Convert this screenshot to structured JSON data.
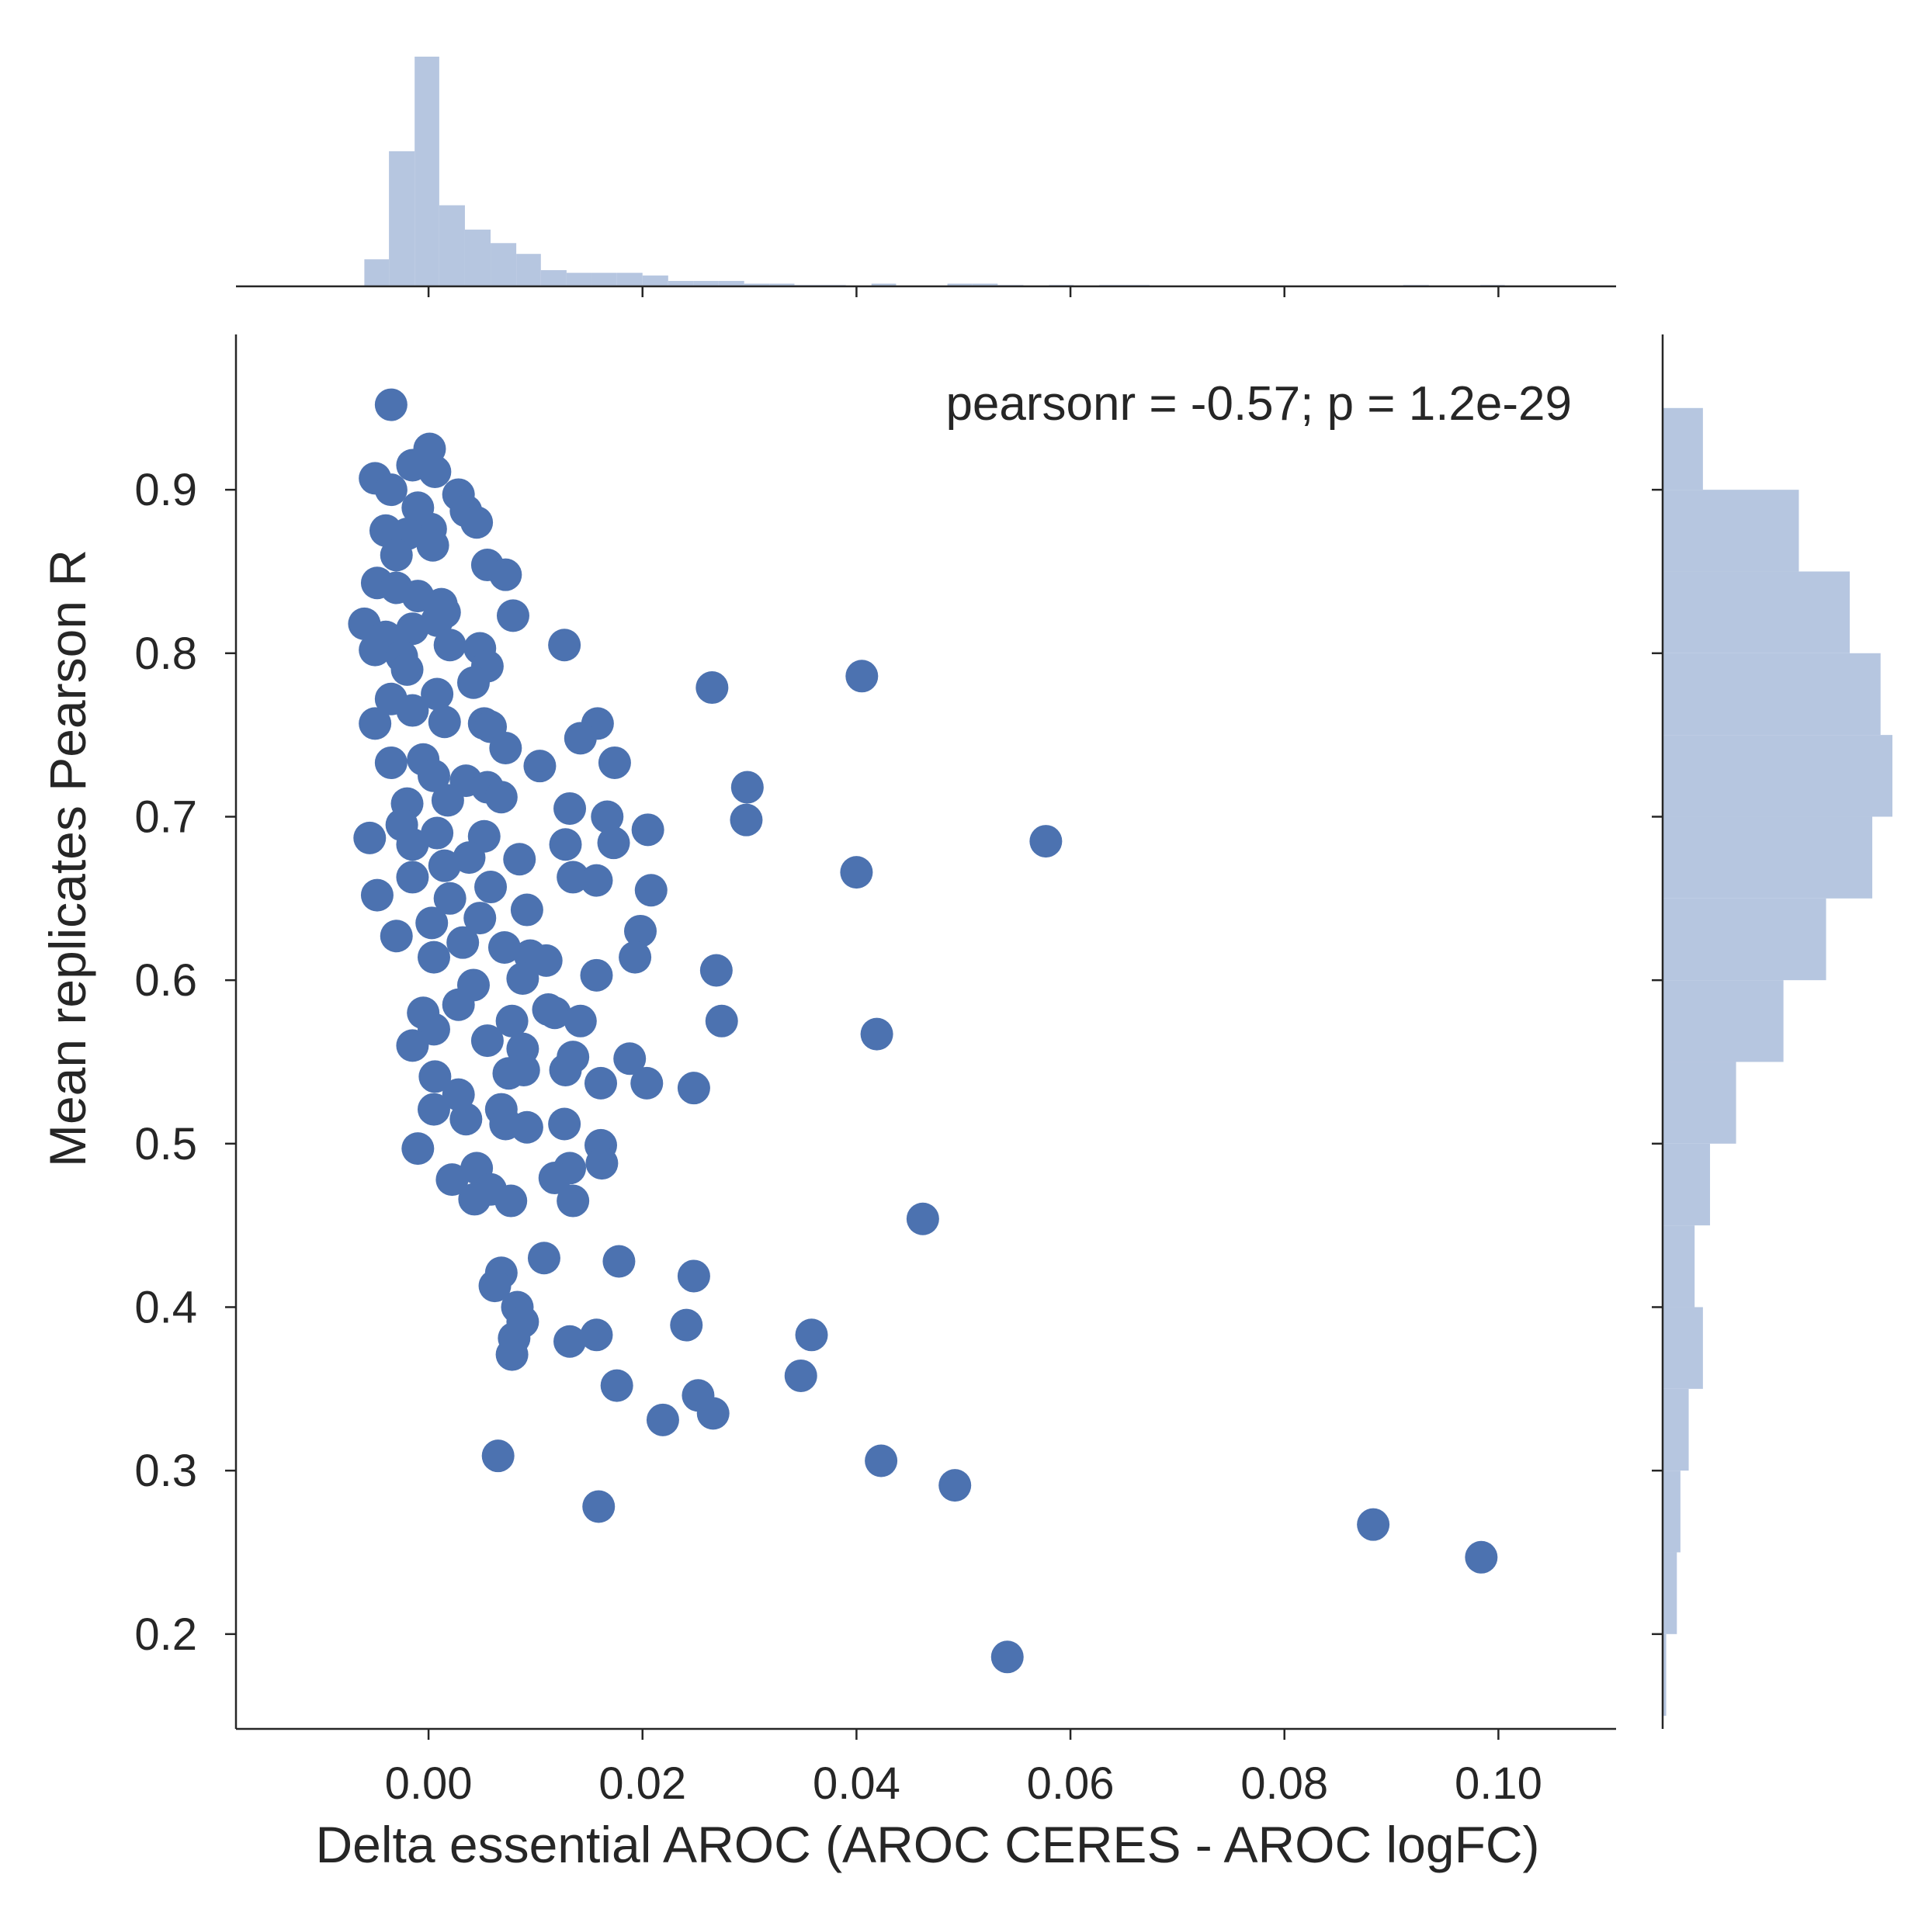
{
  "chart_data": {
    "type": "scatter",
    "title": "",
    "xlabel": "Delta essential AROC (AROC CERES - AROC logFC)",
    "ylabel": "Mean replicates Pearson R",
    "annotation": "pearsonr = -0.57; p = 1.2e-29",
    "annotation_position": "top-right",
    "xlim": [
      -0.018,
      0.111
    ],
    "ylim": [
      0.142,
      0.995
    ],
    "x_ticks": [
      0.0,
      0.02,
      0.04,
      0.06,
      0.08,
      0.1
    ],
    "x_tick_labels": [
      "0.00",
      "0.02",
      "0.04",
      "0.06",
      "0.08",
      "0.10"
    ],
    "y_ticks": [
      0.2,
      0.3,
      0.4,
      0.5,
      0.6,
      0.7,
      0.8,
      0.9
    ],
    "y_tick_labels": [
      "0.2",
      "0.3",
      "0.4",
      "0.5",
      "0.6",
      "0.7",
      "0.8",
      "0.9"
    ],
    "grid": false,
    "colors": {
      "points": "#4c72b0",
      "histogram": "#b6c6e0",
      "axis": "#262626"
    },
    "points": [
      [
        -0.0035,
        0.952
      ],
      [
        0.0001,
        0.925
      ],
      [
        -0.005,
        0.907
      ],
      [
        -0.0015,
        0.915
      ],
      [
        0.0006,
        0.911
      ],
      [
        -0.0035,
        0.9
      ],
      [
        0.0028,
        0.897
      ],
      [
        0.0035,
        0.887
      ],
      [
        0.0045,
        0.88
      ],
      [
        -0.001,
        0.889
      ],
      [
        0.0002,
        0.876
      ],
      [
        -0.004,
        0.875
      ],
      [
        -0.002,
        0.873
      ],
      [
        0.0004,
        0.866
      ],
      [
        -0.003,
        0.86
      ],
      [
        0.0055,
        0.854
      ],
      [
        0.0072,
        0.848
      ],
      [
        -0.0048,
        0.843
      ],
      [
        -0.003,
        0.84
      ],
      [
        -0.001,
        0.835
      ],
      [
        0.0012,
        0.83
      ],
      [
        0.0008,
        0.82
      ],
      [
        -0.0015,
        0.815
      ],
      [
        -0.006,
        0.818
      ],
      [
        0.0079,
        0.823
      ],
      [
        0.0015,
        0.825
      ],
      [
        -0.004,
        0.81
      ],
      [
        -0.005,
        0.802
      ],
      [
        -0.0025,
        0.798
      ],
      [
        0.002,
        0.805
      ],
      [
        0.0048,
        0.803
      ],
      [
        0.0055,
        0.792
      ],
      [
        0.0042,
        0.782
      ],
      [
        0.0127,
        0.805
      ],
      [
        0.0265,
        0.779
      ],
      [
        0.0405,
        0.786
      ],
      [
        -0.002,
        0.79
      ],
      [
        0.0008,
        0.775
      ],
      [
        -0.0035,
        0.772
      ],
      [
        -0.0015,
        0.765
      ],
      [
        -0.005,
        0.757
      ],
      [
        0.0015,
        0.758
      ],
      [
        0.0052,
        0.757
      ],
      [
        0.0058,
        0.755
      ],
      [
        0.0158,
        0.757
      ],
      [
        0.0142,
        0.748
      ],
      [
        0.0072,
        0.742
      ],
      [
        0.0174,
        0.733
      ],
      [
        0.0104,
        0.731
      ],
      [
        -0.0035,
        0.733
      ],
      [
        -0.0005,
        0.735
      ],
      [
        0.0005,
        0.725
      ],
      [
        0.0035,
        0.722
      ],
      [
        0.0055,
        0.718
      ],
      [
        0.0298,
        0.718
      ],
      [
        0.0068,
        0.712
      ],
      [
        0.0018,
        0.71
      ],
      [
        -0.002,
        0.708
      ],
      [
        0.0132,
        0.705
      ],
      [
        0.0167,
        0.7
      ],
      [
        0.0297,
        0.698
      ],
      [
        0.0205,
        0.692
      ],
      [
        -0.0025,
        0.695
      ],
      [
        0.0008,
        0.69
      ],
      [
        0.0052,
        0.688
      ],
      [
        -0.0055,
        0.687
      ],
      [
        -0.0015,
        0.683
      ],
      [
        0.0128,
        0.683
      ],
      [
        0.0173,
        0.684
      ],
      [
        0.0577,
        0.685
      ],
      [
        0.0085,
        0.674
      ],
      [
        0.0038,
        0.675
      ],
      [
        0.0015,
        0.67
      ],
      [
        -0.0015,
        0.663
      ],
      [
        0.0135,
        0.663
      ],
      [
        0.0157,
        0.661
      ],
      [
        0.04,
        0.666
      ],
      [
        0.0208,
        0.655
      ],
      [
        0.0058,
        0.657
      ],
      [
        -0.0048,
        0.652
      ],
      [
        0.002,
        0.65
      ],
      [
        0.0092,
        0.643
      ],
      [
        0.0048,
        0.638
      ],
      [
        0.0003,
        0.635
      ],
      [
        -0.003,
        0.627
      ],
      [
        0.0198,
        0.63
      ],
      [
        0.0032,
        0.623
      ],
      [
        0.0071,
        0.62
      ],
      [
        0.0005,
        0.614
      ],
      [
        0.0095,
        0.615
      ],
      [
        0.011,
        0.612
      ],
      [
        0.0193,
        0.614
      ],
      [
        0.0157,
        0.603
      ],
      [
        0.0269,
        0.606
      ],
      [
        0.0088,
        0.601
      ],
      [
        0.0042,
        0.597
      ],
      [
        0.0028,
        0.585
      ],
      [
        0.0118,
        0.58
      ],
      [
        0.0112,
        0.582
      ],
      [
        -0.0005,
        0.58
      ],
      [
        0.0078,
        0.575
      ],
      [
        0.0142,
        0.575
      ],
      [
        0.0274,
        0.575
      ],
      [
        0.0005,
        0.57
      ],
      [
        0.0419,
        0.567
      ],
      [
        0.0055,
        0.563
      ],
      [
        -0.0015,
        0.56
      ],
      [
        0.0088,
        0.558
      ],
      [
        0.0135,
        0.553
      ],
      [
        0.0188,
        0.552
      ],
      [
        0.0128,
        0.545
      ],
      [
        0.0089,
        0.545
      ],
      [
        0.0075,
        0.543
      ],
      [
        0.0006,
        0.541
      ],
      [
        0.0161,
        0.537
      ],
      [
        0.0204,
        0.537
      ],
      [
        0.0248,
        0.534
      ],
      [
        0.0028,
        0.53
      ],
      [
        0.0068,
        0.521
      ],
      [
        0.0005,
        0.521
      ],
      [
        0.0035,
        0.515
      ],
      [
        0.0072,
        0.512
      ],
      [
        0.0092,
        0.51
      ],
      [
        0.0127,
        0.512
      ],
      [
        0.0161,
        0.499
      ],
      [
        -0.001,
        0.497
      ],
      [
        0.0162,
        0.488
      ],
      [
        0.0132,
        0.485
      ],
      [
        0.0045,
        0.485
      ],
      [
        0.0118,
        0.479
      ],
      [
        0.0022,
        0.478
      ],
      [
        0.0058,
        0.472
      ],
      [
        0.0043,
        0.466
      ],
      [
        0.0077,
        0.465
      ],
      [
        0.0135,
        0.465
      ],
      [
        0.0462,
        0.454
      ],
      [
        0.0108,
        0.43
      ],
      [
        0.0178,
        0.428
      ],
      [
        0.0068,
        0.421
      ],
      [
        0.0248,
        0.419
      ],
      [
        0.0062,
        0.413
      ],
      [
        0.0083,
        0.4
      ],
      [
        0.0088,
        0.391
      ],
      [
        0.0241,
        0.389
      ],
      [
        0.0157,
        0.383
      ],
      [
        0.0358,
        0.383
      ],
      [
        0.0132,
        0.379
      ],
      [
        0.008,
        0.381
      ],
      [
        0.0078,
        0.371
      ],
      [
        0.0348,
        0.358
      ],
      [
        0.0176,
        0.352
      ],
      [
        0.0252,
        0.346
      ],
      [
        0.0266,
        0.335
      ],
      [
        0.0219,
        0.331
      ],
      [
        0.0065,
        0.309
      ],
      [
        0.0423,
        0.306
      ],
      [
        0.0492,
        0.291
      ],
      [
        0.0159,
        0.278
      ],
      [
        0.0883,
        0.267
      ],
      [
        0.0984,
        0.247
      ],
      [
        0.0541,
        0.186
      ]
    ],
    "x_histogram": {
      "bin_edges": [
        -0.006,
        -0.0037,
        -0.0013,
        0.001,
        0.0034,
        0.0058,
        0.0082,
        0.0105,
        0.0129,
        0.0153,
        0.0176,
        0.02,
        0.0224,
        0.0248,
        0.0271,
        0.0295,
        0.0319,
        0.0342,
        0.0366,
        0.039,
        0.0414,
        0.0437,
        0.0461,
        0.0485,
        0.0508,
        0.0532,
        0.0556,
        0.058,
        0.0603,
        0.0627,
        0.0651,
        0.0674,
        0.0698,
        0.0722,
        0.0746,
        0.0769,
        0.0793,
        0.0817,
        0.084,
        0.0864,
        0.0888,
        0.0911,
        0.0935,
        0.0959,
        0.0983,
        0.1006
      ],
      "counts": [
        10,
        50,
        85,
        30,
        21,
        16,
        12,
        6,
        5,
        5,
        5,
        4,
        2,
        2,
        2,
        1,
        1,
        0.5,
        0.5,
        0,
        1,
        0,
        0,
        1,
        1,
        0.5,
        0,
        0.5,
        0,
        0.5,
        0.5,
        0,
        0,
        0,
        0,
        0,
        0,
        0,
        0,
        0,
        0,
        0.5,
        0,
        0,
        0.5
      ]
    },
    "y_histogram": {
      "bin_edges": [
        0.15,
        0.2,
        0.25,
        0.3,
        0.35,
        0.4,
        0.45,
        0.5,
        0.55,
        0.6,
        0.65,
        0.7,
        0.75,
        0.8,
        0.85,
        0.9,
        0.95
      ],
      "counts": [
        0.3,
        1.2,
        1.5,
        2.2,
        3.4,
        2.7,
        4.0,
        6.2,
        10.2,
        13.8,
        17.7,
        19.4,
        18.4,
        15.8,
        11.5,
        3.4
      ]
    }
  }
}
